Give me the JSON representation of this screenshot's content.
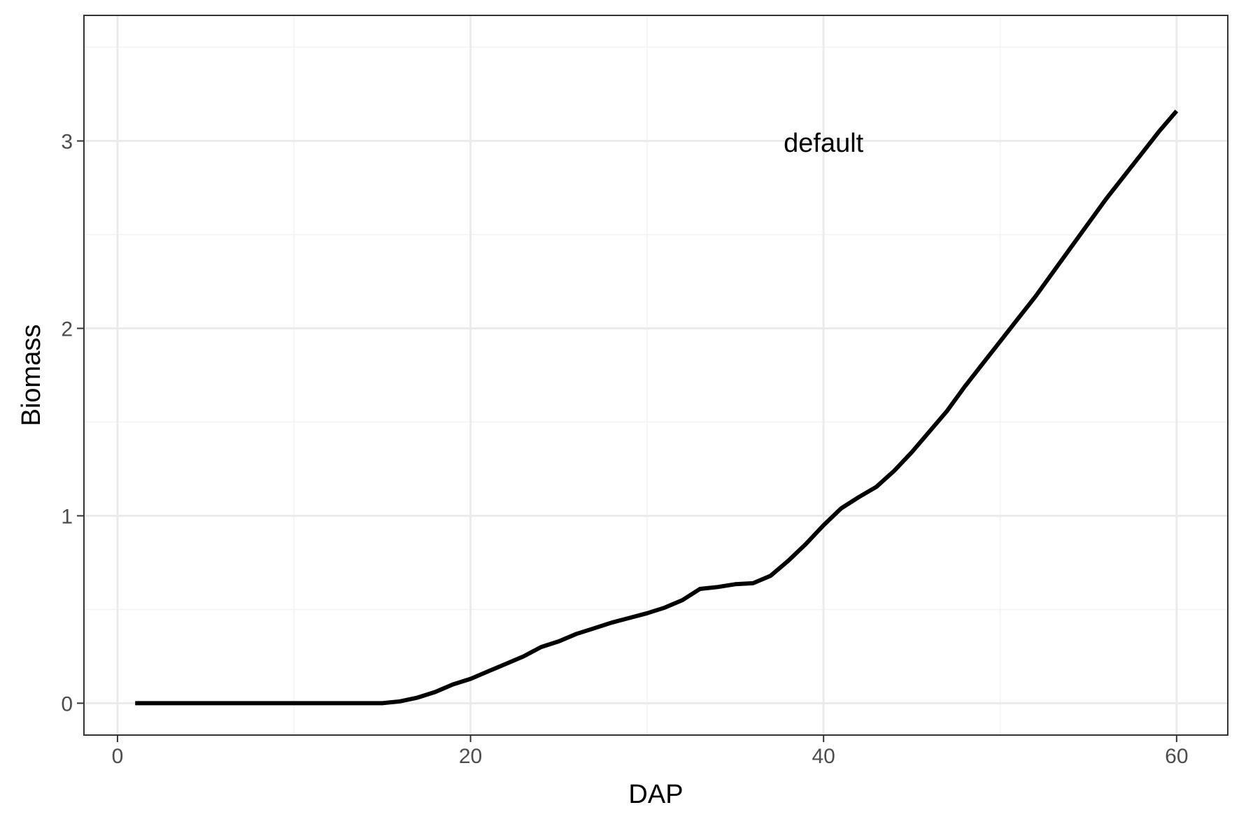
{
  "chart_data": {
    "type": "line",
    "title": "",
    "xlabel": "DAP",
    "ylabel": "Biomass",
    "xlim": [
      -1.9,
      62.9
    ],
    "ylim": [
      -0.17,
      3.67
    ],
    "xticks": [
      0,
      20,
      40,
      60
    ],
    "yticks": [
      0,
      1,
      2,
      3
    ],
    "grid": true,
    "legend": "none",
    "colors": {
      "line": "#000000",
      "grid_major": "#ebebeb",
      "grid_minor": "#f3f3f3",
      "panel_border": "#333333",
      "tick_text": "#4d4d4d"
    },
    "annotations": [
      {
        "text": "default",
        "x": 40,
        "y": 2.99
      }
    ],
    "series": [
      {
        "name": "default",
        "x": [
          1,
          2,
          3,
          4,
          5,
          6,
          7,
          8,
          9,
          10,
          11,
          12,
          13,
          14,
          15,
          16,
          17,
          18,
          19,
          20,
          21,
          22,
          23,
          24,
          25,
          26,
          27,
          28,
          29,
          30,
          31,
          32,
          33,
          34,
          35,
          36,
          37,
          38,
          39,
          40,
          41,
          42,
          43,
          44,
          45,
          46,
          47,
          48,
          49,
          50,
          51,
          52,
          53,
          54,
          55,
          56,
          57,
          58,
          59,
          60
        ],
        "y": [
          0,
          0,
          0,
          0,
          0,
          0,
          0,
          0,
          0,
          0,
          0,
          0,
          0,
          0,
          0,
          0.01,
          0.03,
          0.06,
          0.1,
          0.13,
          0.17,
          0.21,
          0.25,
          0.3,
          0.33,
          0.37,
          0.4,
          0.43,
          0.455,
          0.48,
          0.51,
          0.55,
          0.61,
          0.62,
          0.635,
          0.64,
          0.68,
          0.76,
          0.85,
          0.95,
          1.04,
          1.1,
          1.155,
          1.24,
          1.34,
          1.45,
          1.56,
          1.69,
          1.81,
          1.93,
          2.05,
          2.17,
          2.3,
          2.43,
          2.56,
          2.69,
          2.81,
          2.93,
          3.05,
          3.16
        ]
      }
    ]
  }
}
